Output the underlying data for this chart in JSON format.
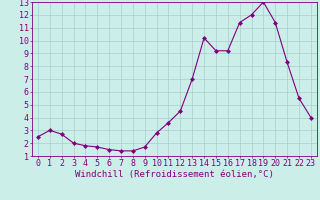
{
  "x": [
    0,
    1,
    2,
    3,
    4,
    5,
    6,
    7,
    8,
    9,
    10,
    11,
    12,
    13,
    14,
    15,
    16,
    17,
    18,
    19,
    20,
    21,
    22,
    23
  ],
  "y": [
    2.5,
    3.0,
    2.7,
    2.0,
    1.8,
    1.7,
    1.5,
    1.4,
    1.4,
    1.7,
    2.8,
    3.6,
    4.5,
    7.0,
    10.2,
    9.2,
    9.2,
    11.4,
    12.0,
    13.0,
    11.4,
    8.3,
    5.5,
    4.0
  ],
  "line_color": "#800080",
  "marker": "D",
  "marker_size": 2.0,
  "bg_color": "#cceee8",
  "grid_color": "#aacccc",
  "xlabel": "Windchill (Refroidissement éolien,°C)",
  "xlim": [
    -0.5,
    23.5
  ],
  "ylim": [
    1,
    13
  ],
  "xticks": [
    0,
    1,
    2,
    3,
    4,
    5,
    6,
    7,
    8,
    9,
    10,
    11,
    12,
    13,
    14,
    15,
    16,
    17,
    18,
    19,
    20,
    21,
    22,
    23
  ],
  "yticks": [
    1,
    2,
    3,
    4,
    5,
    6,
    7,
    8,
    9,
    10,
    11,
    12,
    13
  ],
  "xlabel_fontsize": 6.5,
  "tick_fontsize": 6.0,
  "label_color": "#800080"
}
